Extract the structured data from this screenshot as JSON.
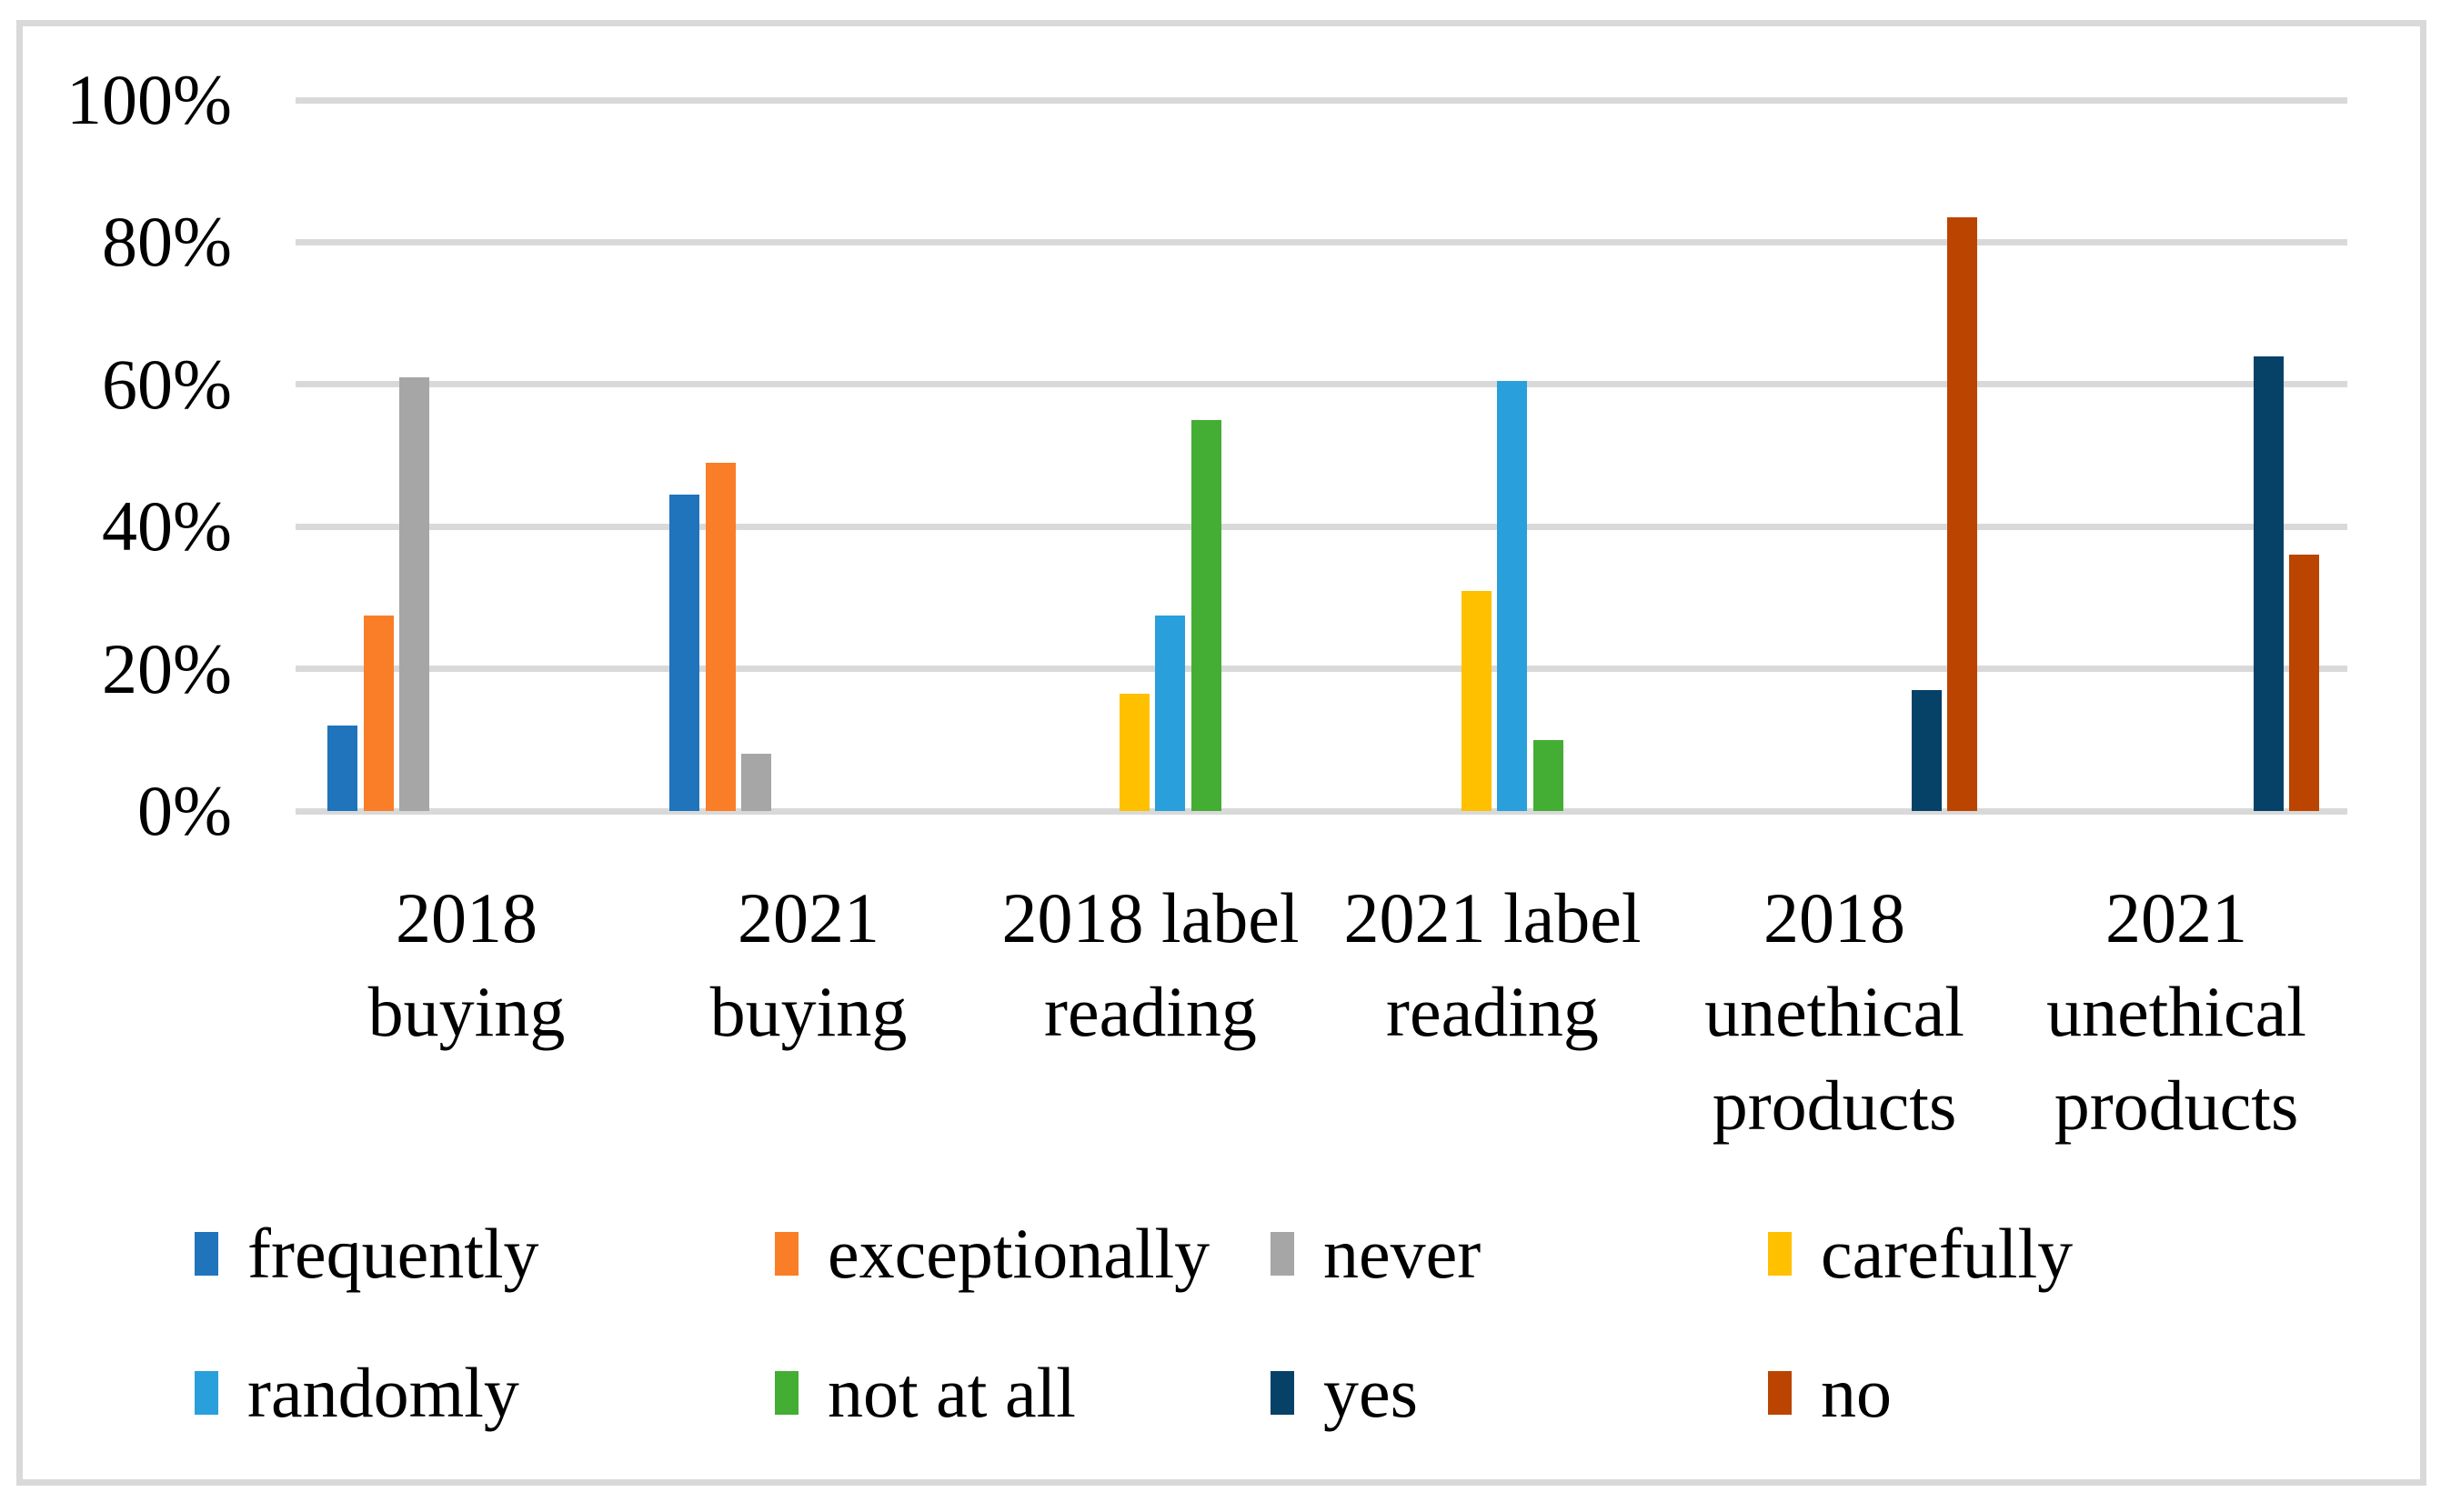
{
  "figure": {
    "border_color": "#D9D9D9",
    "background_color": "#FFFFFF",
    "gridline_color": "#D9D9D9"
  },
  "chart_data": {
    "type": "bar",
    "title": "",
    "xlabel": "",
    "ylabel": "",
    "ylim": [
      0,
      100
    ],
    "grid": true,
    "yticks": [
      {
        "value": 0,
        "label": "0%"
      },
      {
        "value": 20,
        "label": "20%"
      },
      {
        "value": 40,
        "label": "40%"
      },
      {
        "value": 60,
        "label": "60%"
      },
      {
        "value": 80,
        "label": "80%"
      },
      {
        "value": 100,
        "label": "100%"
      }
    ],
    "categories": [
      "2018 buying",
      "2021 buying",
      "2018 label reading",
      "2021 label reading",
      "2018 unethical products",
      "2021 unethical products"
    ],
    "category_label_lines": [
      [
        "2018",
        "buying"
      ],
      [
        "2021",
        "buying"
      ],
      [
        "2018 label",
        "reading"
      ],
      [
        "2021 label",
        "reading"
      ],
      [
        "2018",
        "unethical",
        "products"
      ],
      [
        "2021",
        "unethical",
        "products"
      ]
    ],
    "value_unit": "percent",
    "series": [
      {
        "name": "frequently",
        "color": "#1F74BC",
        "values": [
          12,
          44.5,
          null,
          null,
          null,
          null
        ]
      },
      {
        "name": "exceptionally",
        "color": "#F97E27",
        "values": [
          27.5,
          49,
          null,
          null,
          null,
          null
        ]
      },
      {
        "name": "never",
        "color": "#A6A6A6",
        "values": [
          61,
          8,
          null,
          null,
          null,
          null
        ]
      },
      {
        "name": "carefully",
        "color": "#FFC000",
        "values": [
          null,
          null,
          16.5,
          31,
          null,
          null
        ]
      },
      {
        "name": "randomly",
        "color": "#29A0DB",
        "values": [
          null,
          null,
          27.5,
          60.5,
          null,
          null
        ]
      },
      {
        "name": "not at all",
        "color": "#44AD34",
        "values": [
          null,
          null,
          55,
          10,
          null,
          null
        ]
      },
      {
        "name": "yes",
        "color": "#064167",
        "values": [
          null,
          null,
          null,
          null,
          17,
          64
        ]
      },
      {
        "name": "no",
        "color": "#BB4500",
        "values": [
          null,
          null,
          null,
          null,
          83.5,
          36
        ]
      }
    ],
    "legend_position": "bottom",
    "legend_rows": [
      [
        "frequently",
        "exceptionally",
        "never",
        "carefully"
      ],
      [
        "randomly",
        "not at all",
        "yes",
        "no"
      ]
    ]
  }
}
